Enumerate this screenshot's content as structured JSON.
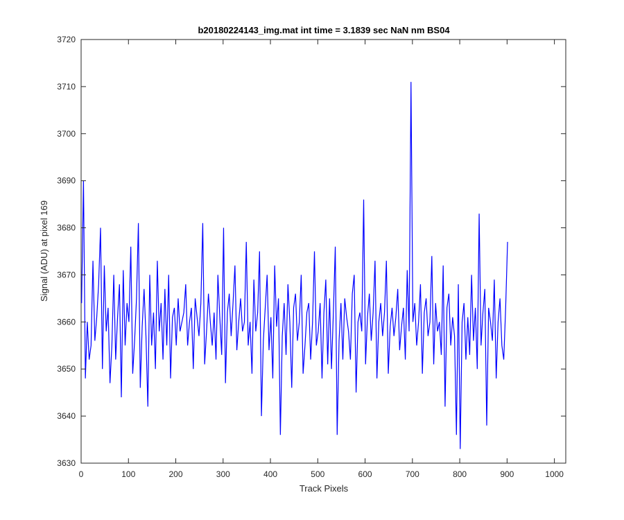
{
  "chart_data": {
    "type": "line",
    "title": "b20180224143_img.mat int time = 3.1839 sec  NaN nm BS04",
    "xlabel": "Track Pixels",
    "ylabel": "Signal (ADU) at pixel 169",
    "xlim": [
      0,
      1024
    ],
    "ylim": [
      3630,
      3720
    ],
    "xticks": [
      0,
      100,
      200,
      300,
      400,
      500,
      600,
      700,
      800,
      900,
      1000
    ],
    "yticks": [
      3630,
      3640,
      3650,
      3660,
      3670,
      3680,
      3690,
      3700,
      3710,
      3720
    ],
    "x_tick_labels": [
      "0",
      "100",
      "200",
      "300",
      "400",
      "500",
      "600",
      "700",
      "800",
      "900",
      "1000"
    ],
    "y_tick_labels": [
      "3630",
      "3640",
      "3650",
      "3660",
      "3670",
      "3680",
      "3690",
      "3700",
      "3710",
      "3720"
    ],
    "grid": false,
    "colors": {
      "line": "#0000ff",
      "axes": "#262626",
      "background": "#ffffff"
    },
    "series": [
      {
        "x_start": 1,
        "x_step": 4,
        "values": [
          3664,
          3690,
          3648,
          3660,
          3652,
          3655,
          3673,
          3656,
          3661,
          3668,
          3680,
          3650,
          3672,
          3658,
          3663,
          3647,
          3655,
          3670,
          3652,
          3661,
          3668,
          3644,
          3671,
          3655,
          3664,
          3660,
          3676,
          3649,
          3656,
          3665,
          3681,
          3646,
          3659,
          3667,
          3657,
          3642,
          3670,
          3655,
          3662,
          3650,
          3673,
          3658,
          3664,
          3652,
          3667,
          3655,
          3670,
          3648,
          3661,
          3663,
          3655,
          3665,
          3658,
          3660,
          3662,
          3668,
          3655,
          3660,
          3663,
          3650,
          3665,
          3661,
          3657,
          3664,
          3681,
          3651,
          3658,
          3666,
          3660,
          3655,
          3662,
          3652,
          3670,
          3661,
          3653,
          3680,
          3647,
          3662,
          3666,
          3657,
          3664,
          3672,
          3654,
          3660,
          3665,
          3658,
          3660,
          3677,
          3655,
          3660,
          3649,
          3669,
          3658,
          3662,
          3675,
          3640,
          3656,
          3663,
          3670,
          3654,
          3661,
          3648,
          3672,
          3659,
          3665,
          3636,
          3657,
          3664,
          3653,
          3668,
          3660,
          3646,
          3663,
          3666,
          3656,
          3660,
          3670,
          3649,
          3655,
          3662,
          3664,
          3652,
          3660,
          3675,
          3655,
          3658,
          3664,
          3648,
          3662,
          3669,
          3651,
          3665,
          3650,
          3662,
          3676,
          3636,
          3656,
          3664,
          3652,
          3665,
          3661,
          3658,
          3652,
          3666,
          3670,
          3645,
          3660,
          3662,
          3658,
          3686,
          3651,
          3661,
          3666,
          3656,
          3662,
          3673,
          3648,
          3660,
          3664,
          3657,
          3662,
          3673,
          3649,
          3659,
          3663,
          3657,
          3661,
          3667,
          3654,
          3659,
          3663,
          3652,
          3671,
          3658,
          3711,
          3660,
          3664,
          3655,
          3660,
          3668,
          3649,
          3662,
          3665,
          3657,
          3660,
          3674,
          3651,
          3664,
          3658,
          3660,
          3653,
          3672,
          3642,
          3663,
          3666,
          3655,
          3661,
          3657,
          3636,
          3668,
          3633,
          3660,
          3664,
          3652,
          3661,
          3653,
          3670,
          3656,
          3663,
          3650,
          3683,
          3655,
          3662,
          3667,
          3638,
          3663,
          3660,
          3656,
          3669,
          3648,
          3660,
          3665,
          3655,
          3652,
          3663,
          3677
        ]
      }
    ]
  }
}
